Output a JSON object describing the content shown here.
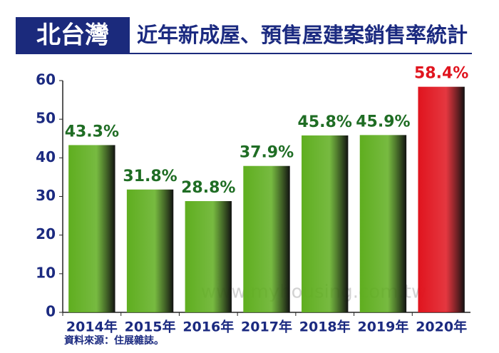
{
  "chart_data": {
    "type": "bar",
    "title_prefix": "北台灣",
    "title": "近年新成屋、預售屋建案銷售率統計",
    "categories": [
      "2014年",
      "2015年",
      "2016年",
      "2017年",
      "2018年",
      "2019年",
      "2020年"
    ],
    "values": [
      43.3,
      31.8,
      28.8,
      37.9,
      45.8,
      45.9,
      58.4
    ],
    "value_labels": [
      "43.3%",
      "31.8%",
      "28.8%",
      "37.9%",
      "45.8%",
      "45.9%",
      "58.4%"
    ],
    "colors": [
      "#5fae1f",
      "#5fae1f",
      "#5fae1f",
      "#5fae1f",
      "#5fae1f",
      "#5fae1f",
      "#e0141e"
    ],
    "label_colors": [
      "#1f6d24",
      "#1f6d24",
      "#1f6d24",
      "#1f6d24",
      "#1f6d24",
      "#1f6d24",
      "#e0141e"
    ],
    "ylim": [
      0,
      60
    ],
    "yticks": [
      0,
      10,
      20,
      30,
      40,
      50,
      60
    ],
    "grid": false,
    "source": "資料來源：住展雜誌。",
    "watermark": "www.myhousing.com.tw"
  }
}
